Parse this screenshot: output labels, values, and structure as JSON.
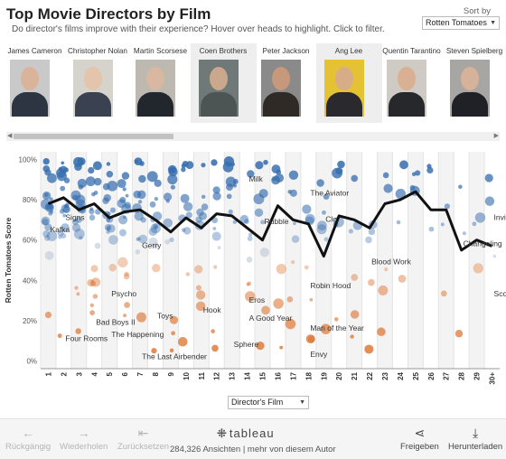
{
  "header": {
    "title": "Top Movie Directors by Film",
    "subtitle": "Do director's films improve with their experience? Hover over heads to highlight. Click to filter.",
    "sort_label": "Sort by",
    "sort_value": "Rotten Tomatoes"
  },
  "directors": [
    {
      "name": "James Cameron",
      "bg": "#c9c9c9",
      "skin": "#d9b49a",
      "clothes": "#2e3542"
    },
    {
      "name": "Christopher Nolan",
      "bg": "#d6d2cc",
      "skin": "#e4c4ab",
      "clothes": "#3a4150"
    },
    {
      "name": "Martin Scorsese",
      "bg": "#bdb8b0",
      "skin": "#d8b8a0",
      "clothes": "#22262d"
    },
    {
      "name": "Coen Brothers",
      "bg": "#6f7a78",
      "skin": "#c9a88e",
      "clothes": "#4d5554"
    },
    {
      "name": "Peter Jackson",
      "bg": "#8a8a8a",
      "skin": "#c7987a",
      "clothes": "#2f2a26"
    },
    {
      "name": "Ang Lee",
      "bg": "#e5c233",
      "skin": "#d6ad86",
      "clothes": "#2a2a2e"
    },
    {
      "name": "Quentin Tarantino",
      "bg": "#cfcac4",
      "skin": "#d9b094",
      "clothes": "#26282c"
    },
    {
      "name": "Steven Spielberg",
      "bg": "#a8a6a2",
      "skin": "#d7b29a",
      "clothes": "#1f2126"
    }
  ],
  "filter": {
    "label": "Director's Film"
  },
  "toolbar": {
    "undo": "Rückgängig",
    "redo": "Wiederholen",
    "reset": "Zurücksetzen",
    "logo": "tableau",
    "views": "284,326 Ansichten | mehr von diesem Autor",
    "share": "Freigeben",
    "download": "Herunterladen"
  },
  "chart_data": {
    "type": "scatter",
    "ylabel": "Rotten Tomatoes Score",
    "x_categories": [
      "1",
      "2",
      "3",
      "4",
      "5",
      "6",
      "7",
      "8",
      "9",
      "10",
      "11",
      "12",
      "13",
      "14",
      "15",
      "16",
      "17",
      "18",
      "19",
      "20",
      "21",
      "22",
      "23",
      "24",
      "25",
      "26",
      "27",
      "28",
      "29",
      "30+"
    ],
    "y_ticks": [
      "0%",
      "20%",
      "40%",
      "60%",
      "80%",
      "100%"
    ],
    "ylim": [
      0,
      100
    ],
    "colors": {
      "high": "#4a7fb5",
      "low": "#e07d3c",
      "line": "#111111"
    },
    "average_line": [
      78,
      81,
      75,
      78,
      71,
      74,
      75,
      70,
      64,
      71,
      66,
      73,
      72,
      66,
      60,
      77,
      70,
      68,
      52,
      72,
      70,
      66,
      78,
      80,
      84,
      75,
      75,
      55,
      60,
      57
    ],
    "labels": [
      {
        "text": "Kafka",
        "x": 1,
        "y": 64
      },
      {
        "text": "Signs",
        "x": 2,
        "y": 70
      },
      {
        "text": "Four Rooms",
        "x": 2,
        "y": 10
      },
      {
        "text": "Bad Boys II",
        "x": 4,
        "y": 18
      },
      {
        "text": "Psycho",
        "x": 5,
        "y": 32
      },
      {
        "text": "The Happening",
        "x": 5,
        "y": 12
      },
      {
        "text": "Gerry",
        "x": 7,
        "y": 56
      },
      {
        "text": "The Last Airbender",
        "x": 7,
        "y": 1
      },
      {
        "text": "Toys",
        "x": 8,
        "y": 21
      },
      {
        "text": "Hook",
        "x": 11,
        "y": 24
      },
      {
        "text": "Milk",
        "x": 14,
        "y": 89
      },
      {
        "text": "Eros",
        "x": 14,
        "y": 29
      },
      {
        "text": "A Good Year",
        "x": 14,
        "y": 20
      },
      {
        "text": "Sphere",
        "x": 13,
        "y": 7
      },
      {
        "text": "Rubble",
        "x": 15,
        "y": 68
      },
      {
        "text": "The Aviator",
        "x": 18,
        "y": 82
      },
      {
        "text": "Robin Hood",
        "x": 18,
        "y": 36
      },
      {
        "text": "Man of the Year",
        "x": 18,
        "y": 15
      },
      {
        "text": "Envy",
        "x": 18,
        "y": 2
      },
      {
        "text": "Clo",
        "x": 19,
        "y": 69
      },
      {
        "text": "Blood Work",
        "x": 22,
        "y": 48
      },
      {
        "text": "Invictus",
        "x": 30,
        "y": 70
      },
      {
        "text": "Changeling",
        "x": 28,
        "y": 57
      },
      {
        "text": "Scoop",
        "x": 30,
        "y": 32
      }
    ]
  }
}
